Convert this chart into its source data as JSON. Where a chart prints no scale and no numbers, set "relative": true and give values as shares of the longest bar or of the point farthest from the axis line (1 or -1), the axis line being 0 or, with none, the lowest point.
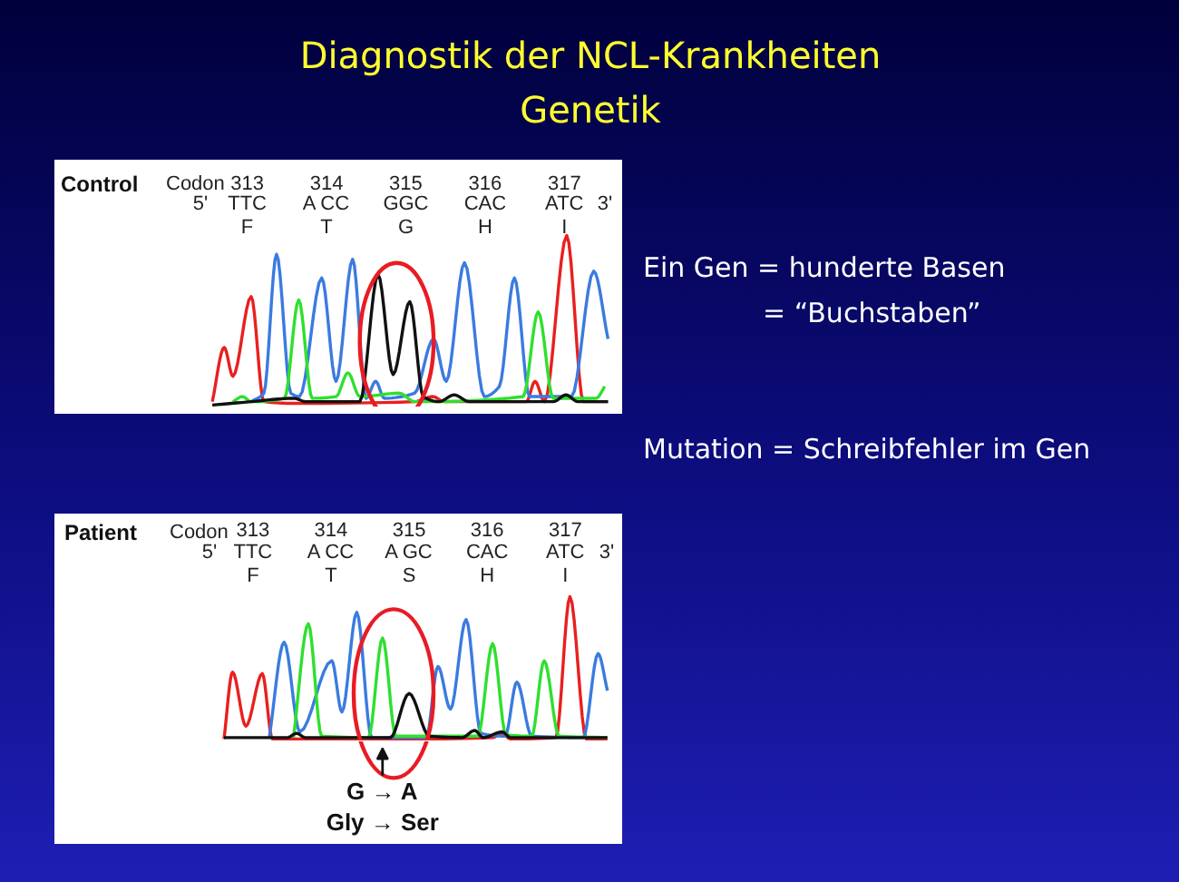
{
  "chart_data": [
    {
      "type": "other",
      "title": "Diagnostik der NCL-Krankheiten",
      "subtitle": "Genetik"
    },
    {
      "type": "line",
      "title": "Control",
      "relative": true,
      "xlim": [
        310.58,
        317.74
      ],
      "xticks": [
        313,
        314,
        315,
        316,
        317
      ],
      "tick_labels": "x",
      "series": [
        {
          "color": "#e82020",
          "x": [
            312.56,
            312.71,
            312.82,
            313.05,
            313.21,
            313.59,
            315.11,
            315.34,
            315.49,
            316.52,
            316.63,
            316.75,
            317.03,
            317.24,
            317.55
          ],
          "values": [
            0.02,
            0.34,
            0.17,
            0.64,
            0.02,
            0.01,
            0.02,
            0.05,
            0.02,
            0.02,
            0.14,
            0.02,
            1.0,
            0.02,
            0.02
          ]
        },
        {
          "color": "#3a7be0",
          "x": [
            313.05,
            313.21,
            313.37,
            313.55,
            313.66,
            313.94,
            314.12,
            314.33,
            314.5,
            314.62,
            314.73,
            315.11,
            315.35,
            315.51,
            315.74,
            315.99,
            316.18,
            316.37,
            316.56,
            317.09,
            317.37,
            317.55
          ],
          "values": [
            0.02,
            0.07,
            0.89,
            0.07,
            0.05,
            0.75,
            0.14,
            0.86,
            0.04,
            0.14,
            0.04,
            0.07,
            0.39,
            0.14,
            0.84,
            0.05,
            0.11,
            0.75,
            0.05,
            0.05,
            0.79,
            0.39
          ]
        },
        {
          "color": "#2ee02e",
          "x": [
            312.82,
            312.94,
            313.05,
            313.47,
            313.65,
            313.82,
            314.12,
            314.27,
            314.42,
            314.92,
            315.11,
            316.48,
            316.67,
            316.86,
            317.4,
            317.51
          ],
          "values": [
            0.02,
            0.05,
            0.02,
            0.04,
            0.62,
            0.04,
            0.05,
            0.19,
            0.05,
            0.07,
            0.02,
            0.05,
            0.55,
            0.04,
            0.04,
            0.11
          ]
        },
        {
          "color": "#111111",
          "x": [
            312.56,
            313.05,
            313.59,
            313.74,
            314.42,
            314.65,
            314.84,
            315.05,
            315.22,
            315.42,
            315.61,
            315.8,
            316.86,
            317.02,
            317.17,
            317.55
          ],
          "values": [
            0,
            0.02,
            0.04,
            0.02,
            0.02,
            0.77,
            0.18,
            0.61,
            0.05,
            0.02,
            0.06,
            0.02,
            0.02,
            0.06,
            0.02,
            0.02
          ]
        }
      ],
      "annotations": [
        "Codon",
        "5'",
        "3'",
        "TTC",
        "A CC",
        "GGC",
        "CAC",
        "ATC",
        "F",
        "T",
        "G",
        "H",
        "I"
      ]
    },
    {
      "type": "line",
      "title": "Patient",
      "relative": true,
      "xlim": [
        310.47,
        317.74
      ],
      "xticks": [
        313,
        314,
        315,
        316,
        317
      ],
      "tick_labels": "x",
      "series": [
        {
          "color": "#e82020",
          "x": [
            312.63,
            312.74,
            312.91,
            313.12,
            313.25,
            315.06,
            316.07,
            316.19,
            316.3,
            316.88,
            317.06,
            317.27,
            317.54
          ],
          "values": [
            0,
            0.47,
            0.09,
            0.46,
            0,
            0,
            0.01,
            0.04,
            0,
            0.01,
            1.0,
            0,
            0
          ]
        },
        {
          "color": "#3a7be0",
          "x": [
            313.21,
            313.4,
            313.6,
            314.01,
            314.14,
            314.33,
            314.52,
            315.22,
            315.37,
            315.53,
            315.73,
            315.92,
            316.23,
            316.38,
            316.57,
            317.23,
            317.42,
            317.54
          ],
          "values": [
            0.01,
            0.68,
            0.05,
            0.55,
            0.19,
            0.89,
            0.01,
            0.01,
            0.51,
            0.21,
            0.84,
            0.04,
            0.02,
            0.4,
            0.02,
            0.01,
            0.6,
            0.34
          ]
        },
        {
          "color": "#2ee02e",
          "x": [
            313.52,
            313.71,
            313.88,
            314.48,
            314.66,
            314.83,
            315.88,
            316.07,
            316.24,
            316.57,
            316.73,
            316.92,
            317.54
          ],
          "values": [
            0.01,
            0.81,
            0.02,
            0.01,
            0.71,
            0.02,
            0.02,
            0.67,
            0.03,
            0.02,
            0.55,
            0.02,
            0.01
          ]
        },
        {
          "color": "#111111",
          "x": [
            312.63,
            313.44,
            313.56,
            313.67,
            314.76,
            315.0,
            315.26,
            315.68,
            315.84,
            315.95,
            316.19,
            316.3,
            317.54
          ],
          "values": [
            0.01,
            0.01,
            0.04,
            0.01,
            0.01,
            0.32,
            0.02,
            0.01,
            0.06,
            0.01,
            0.05,
            0.01,
            0.01
          ]
        }
      ],
      "annotations": [
        "Codon",
        "5'",
        "3'",
        "TTC",
        "A CC",
        "A GC",
        "CAC",
        "ATC",
        "F",
        "T",
        "S",
        "H",
        "I",
        {
          "text": "G → A\nGly → Ser",
          "x": 314.66,
          "y": 0
        }
      ]
    },
    {
      "type": "other",
      "annotations": [
        "Ein Gen = hunderte Basen",
        "= “Buchstaben”",
        "Mutation = Schreibfehler im Gen"
      ]
    }
  ]
}
